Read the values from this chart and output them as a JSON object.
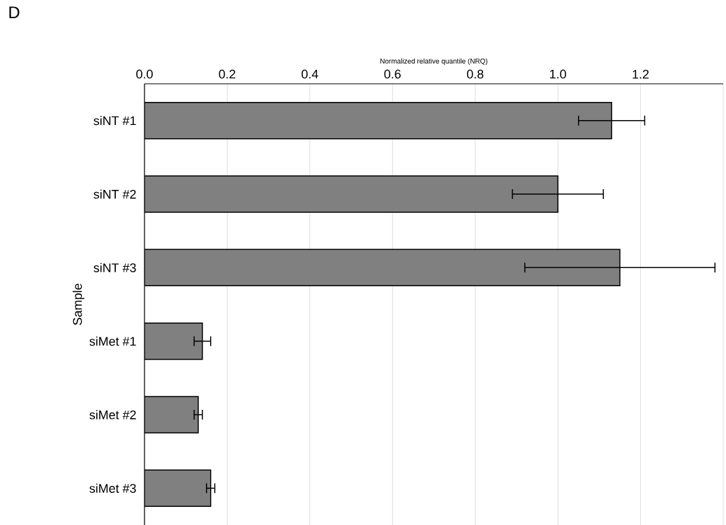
{
  "chart_data": {
    "type": "bar",
    "orientation": "horizontal",
    "xlabel": "Normalized relative quantile (NRQ)",
    "ylabel": "Sample",
    "annotations": [
      "D"
    ],
    "categories": [
      "siNT #1",
      "siNT #2",
      "siNT #3",
      "siMet #1",
      "siMet #2",
      "siMet #3"
    ],
    "values": [
      1.13,
      1.0,
      1.15,
      0.14,
      0.13,
      0.16
    ],
    "errors": [
      0.08,
      0.11,
      0.23,
      0.02,
      0.01,
      0.01
    ],
    "color": "#808080",
    "xlim": [
      0,
      1.4
    ],
    "xticks": [
      {
        "value": 0,
        "label": "0.0"
      },
      {
        "value": 0.2,
        "label": "0.2"
      },
      {
        "value": 0.4,
        "label": "0.4"
      },
      {
        "value": 0.6,
        "label": "0.6"
      },
      {
        "value": 0.8,
        "label": "0.8"
      },
      {
        "value": 1.0,
        "label": "1.0"
      },
      {
        "value": 1.2,
        "label": "1.2"
      },
      {
        "value": 1.4,
        "label": null
      }
    ],
    "grid": "x"
  }
}
